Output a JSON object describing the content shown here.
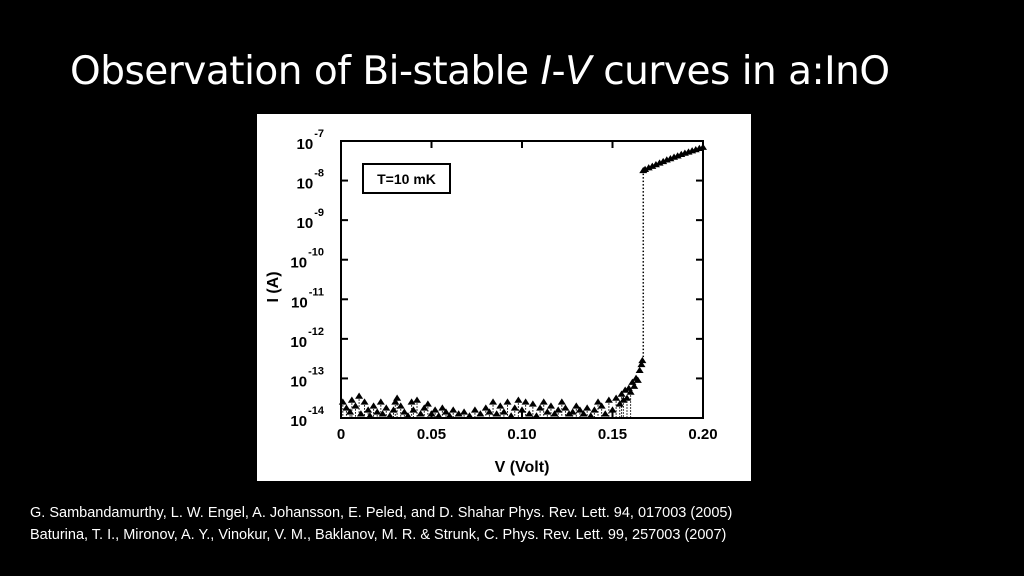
{
  "slide": {
    "title_pre": "Observation of Bi-stable ",
    "title_I": "I",
    "title_dash": "-",
    "title_V": "V",
    "title_post": " curves in a:InO",
    "references": [
      "G. Sambandamurthy, L. W. Engel, A. Johansson, E. Peled, and D. Shahar Phys. Rev. Lett. 94, 017003 (2005)",
      "Baturina, T. I., Mironov, A. Y., Vinokur, V. M., Baklanov, M. R. & Strunk, C. Phys. Rev. Lett. 99, 257003 (2007)"
    ]
  },
  "chart_data": {
    "type": "scatter",
    "xlabel": "V (Volt)",
    "ylabel": "I (A)",
    "xlim": [
      0,
      0.2
    ],
    "ylim_exp": [
      -14,
      -7
    ],
    "y_scale": "log",
    "x_ticks": [
      0,
      0.05,
      0.1,
      0.15,
      0.2
    ],
    "x_tick_labels": [
      "0",
      "0.05",
      "0.10",
      "0.15",
      "0.20"
    ],
    "y_tick_exps": [
      -7,
      -8,
      -9,
      -10,
      -11,
      -12,
      -13,
      -14
    ],
    "y_tick_base": "10",
    "annotation": "T=10 mK",
    "marker": "triangle",
    "switch_voltage": 0.167,
    "series": [
      {
        "points": [
          [
            0.001,
            -13.6
          ],
          [
            0.003,
            -13.75
          ],
          [
            0.005,
            -13.85
          ],
          [
            0.006,
            -13.55
          ],
          [
            0.008,
            -13.7
          ],
          [
            0.01,
            -13.45
          ],
          [
            0.011,
            -13.9
          ],
          [
            0.013,
            -13.6
          ],
          [
            0.015,
            -13.8
          ],
          [
            0.016,
            -13.95
          ],
          [
            0.018,
            -13.7
          ],
          [
            0.02,
            -13.85
          ],
          [
            0.022,
            -13.6
          ],
          [
            0.023,
            -13.9
          ],
          [
            0.025,
            -13.75
          ],
          [
            0.027,
            -13.95
          ],
          [
            0.029,
            -13.8
          ],
          [
            0.03,
            -13.6
          ],
          [
            0.031,
            -13.5
          ],
          [
            0.033,
            -13.7
          ],
          [
            0.035,
            -13.85
          ],
          [
            0.037,
            -13.95
          ],
          [
            0.039,
            -13.6
          ],
          [
            0.04,
            -13.8
          ],
          [
            0.042,
            -13.55
          ],
          [
            0.044,
            -13.9
          ],
          [
            0.046,
            -13.75
          ],
          [
            0.048,
            -13.65
          ],
          [
            0.05,
            -13.9
          ],
          [
            0.052,
            -13.8
          ],
          [
            0.054,
            -13.95
          ],
          [
            0.056,
            -13.75
          ],
          [
            0.058,
            -13.85
          ],
          [
            0.06,
            -13.95
          ],
          [
            0.062,
            -13.8
          ],
          [
            0.065,
            -13.9
          ],
          [
            0.068,
            -13.85
          ],
          [
            0.071,
            -13.95
          ],
          [
            0.074,
            -13.8
          ],
          [
            0.077,
            -13.9
          ],
          [
            0.08,
            -13.75
          ],
          [
            0.082,
            -13.85
          ],
          [
            0.084,
            -13.6
          ],
          [
            0.086,
            -13.9
          ],
          [
            0.088,
            -13.7
          ],
          [
            0.09,
            -13.85
          ],
          [
            0.092,
            -13.6
          ],
          [
            0.094,
            -13.95
          ],
          [
            0.096,
            -13.75
          ],
          [
            0.098,
            -13.55
          ],
          [
            0.1,
            -13.8
          ],
          [
            0.102,
            -13.6
          ],
          [
            0.104,
            -13.9
          ],
          [
            0.106,
            -13.65
          ],
          [
            0.108,
            -13.95
          ],
          [
            0.11,
            -13.75
          ],
          [
            0.112,
            -13.6
          ],
          [
            0.114,
            -13.85
          ],
          [
            0.116,
            -13.7
          ],
          [
            0.118,
            -13.9
          ],
          [
            0.12,
            -13.8
          ],
          [
            0.122,
            -13.6
          ],
          [
            0.124,
            -13.75
          ],
          [
            0.126,
            -13.9
          ],
          [
            0.128,
            -13.85
          ],
          [
            0.13,
            -13.7
          ],
          [
            0.132,
            -13.8
          ],
          [
            0.134,
            -13.9
          ],
          [
            0.136,
            -13.75
          ],
          [
            0.138,
            -13.95
          ],
          [
            0.14,
            -13.8
          ],
          [
            0.142,
            -13.6
          ],
          [
            0.144,
            -13.7
          ],
          [
            0.146,
            -13.9
          ],
          [
            0.148,
            -13.55
          ],
          [
            0.15,
            -13.8
          ],
          [
            0.152,
            -13.5
          ],
          [
            0.154,
            -13.65
          ],
          [
            0.155,
            -13.4
          ],
          [
            0.156,
            -13.55
          ],
          [
            0.157,
            -13.3
          ],
          [
            0.158,
            -13.5
          ],
          [
            0.159,
            -13.25
          ],
          [
            0.16,
            -13.35
          ],
          [
            0.161,
            -13.1
          ],
          [
            0.162,
            -13.2
          ],
          [
            0.163,
            -13.0
          ],
          [
            0.164,
            -13.05
          ],
          [
            0.165,
            -12.8
          ],
          [
            0.166,
            -12.65
          ],
          [
            0.1665,
            -12.55
          ],
          [
            0.167,
            -7.75
          ],
          [
            0.168,
            -7.72
          ],
          [
            0.17,
            -7.68
          ],
          [
            0.172,
            -7.64
          ],
          [
            0.174,
            -7.6
          ],
          [
            0.176,
            -7.56
          ],
          [
            0.178,
            -7.52
          ],
          [
            0.18,
            -7.48
          ],
          [
            0.182,
            -7.45
          ],
          [
            0.184,
            -7.41
          ],
          [
            0.186,
            -7.38
          ],
          [
            0.188,
            -7.34
          ],
          [
            0.19,
            -7.31
          ],
          [
            0.192,
            -7.28
          ],
          [
            0.194,
            -7.25
          ],
          [
            0.196,
            -7.22
          ],
          [
            0.198,
            -7.19
          ],
          [
            0.2,
            -7.16
          ]
        ]
      }
    ]
  }
}
